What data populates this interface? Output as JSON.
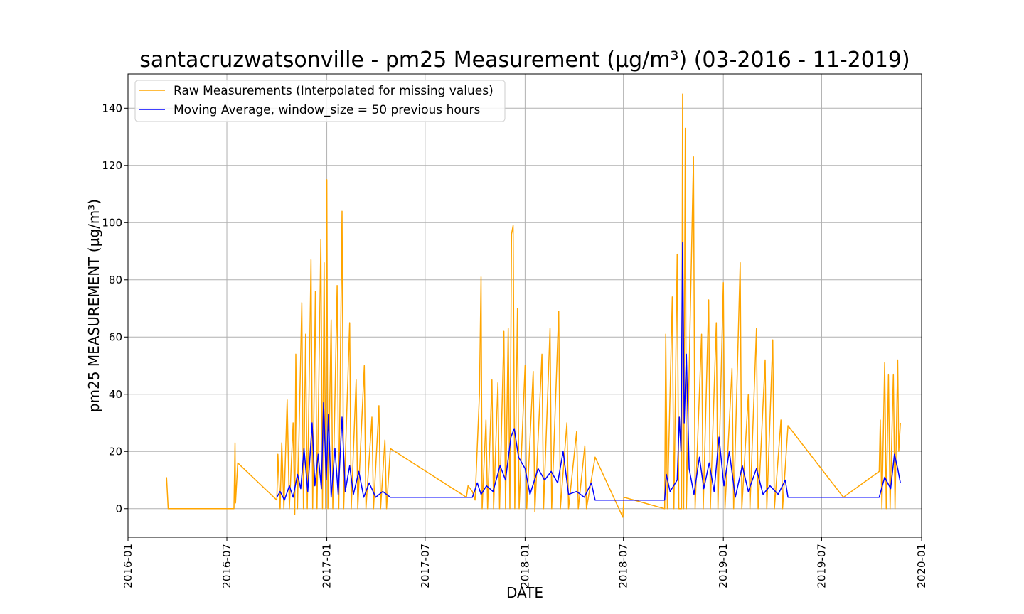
{
  "chart_data": {
    "type": "line",
    "title": "santacruzwatsonville - pm25 Measurement (µg/m³) (03-2016 - 11-2019)",
    "xlabel": "DATE",
    "ylabel": "pm25 MEASUREMENT (µg/m³)",
    "xlim": [
      "2016-01-01",
      "2020-01-01"
    ],
    "ylim": [
      -10,
      152
    ],
    "grid": true,
    "legend_position": "top-left",
    "x_ticks": [
      "2016-01",
      "2016-07",
      "2017-01",
      "2017-07",
      "2018-01",
      "2018-07",
      "2019-01",
      "2019-07",
      "2020-01"
    ],
    "y_ticks": [
      0,
      20,
      40,
      60,
      80,
      100,
      120,
      140
    ],
    "series": [
      {
        "name": "Raw Measurements (Interpolated for missing values)",
        "color": "#ffa500",
        "points": [
          [
            "2016-03-12",
            11
          ],
          [
            "2016-03-15",
            0
          ],
          [
            "2016-07-14",
            0
          ],
          [
            "2016-07-16",
            23
          ],
          [
            "2016-07-17",
            2
          ],
          [
            "2016-07-21",
            16
          ],
          [
            "2016-10-01",
            3
          ],
          [
            "2016-10-03",
            19
          ],
          [
            "2016-10-07",
            0
          ],
          [
            "2016-10-10",
            23
          ],
          [
            "2016-10-14",
            0
          ],
          [
            "2016-10-20",
            38
          ],
          [
            "2016-10-24",
            0
          ],
          [
            "2016-10-31",
            30
          ],
          [
            "2016-11-03",
            -2
          ],
          [
            "2016-11-05",
            54
          ],
          [
            "2016-11-08",
            0
          ],
          [
            "2016-11-16",
            72
          ],
          [
            "2016-11-19",
            0
          ],
          [
            "2016-11-23",
            61
          ],
          [
            "2016-11-26",
            0
          ],
          [
            "2016-12-03",
            87
          ],
          [
            "2016-12-06",
            0
          ],
          [
            "2016-12-11",
            76
          ],
          [
            "2016-12-14",
            0
          ],
          [
            "2016-12-21",
            94
          ],
          [
            "2016-12-24",
            0
          ],
          [
            "2016-12-27",
            86
          ],
          [
            "2016-12-30",
            0
          ],
          [
            "2017-01-01",
            115
          ],
          [
            "2017-01-03",
            0
          ],
          [
            "2017-01-09",
            66
          ],
          [
            "2017-01-12",
            0
          ],
          [
            "2017-01-20",
            78
          ],
          [
            "2017-01-23",
            0
          ],
          [
            "2017-01-29",
            104
          ],
          [
            "2017-02-01",
            0
          ],
          [
            "2017-02-12",
            65
          ],
          [
            "2017-02-15",
            0
          ],
          [
            "2017-02-24",
            45
          ],
          [
            "2017-02-27",
            0
          ],
          [
            "2017-03-11",
            50
          ],
          [
            "2017-03-14",
            0
          ],
          [
            "2017-03-25",
            32
          ],
          [
            "2017-03-28",
            0
          ],
          [
            "2017-04-07",
            36
          ],
          [
            "2017-04-10",
            0
          ],
          [
            "2017-04-18",
            24
          ],
          [
            "2017-04-21",
            0
          ],
          [
            "2017-04-28",
            21
          ],
          [
            "2017-09-15",
            4
          ],
          [
            "2017-09-18",
            8
          ],
          [
            "2017-09-26",
            6
          ],
          [
            "2017-10-01",
            3
          ],
          [
            "2017-10-05",
            22
          ],
          [
            "2017-10-09",
            40
          ],
          [
            "2017-10-12",
            81
          ],
          [
            "2017-10-14",
            0
          ],
          [
            "2017-10-21",
            31
          ],
          [
            "2017-10-24",
            0
          ],
          [
            "2017-11-01",
            45
          ],
          [
            "2017-11-04",
            0
          ],
          [
            "2017-11-12",
            44
          ],
          [
            "2017-11-15",
            0
          ],
          [
            "2017-11-23",
            62
          ],
          [
            "2017-11-26",
            0
          ],
          [
            "2017-12-01",
            63
          ],
          [
            "2017-12-04",
            0
          ],
          [
            "2017-12-07",
            96
          ],
          [
            "2017-12-10",
            99
          ],
          [
            "2017-12-13",
            0
          ],
          [
            "2017-12-18",
            70
          ],
          [
            "2017-12-21",
            0
          ],
          [
            "2018-01-01",
            50
          ],
          [
            "2018-01-04",
            0
          ],
          [
            "2018-01-16",
            48
          ],
          [
            "2018-01-19",
            -1
          ],
          [
            "2018-02-01",
            54
          ],
          [
            "2018-02-04",
            0
          ],
          [
            "2018-02-16",
            63
          ],
          [
            "2018-02-19",
            0
          ],
          [
            "2018-03-04",
            69
          ],
          [
            "2018-03-07",
            0
          ],
          [
            "2018-03-19",
            30
          ],
          [
            "2018-03-22",
            0
          ],
          [
            "2018-04-06",
            27
          ],
          [
            "2018-04-09",
            0
          ],
          [
            "2018-04-21",
            22
          ],
          [
            "2018-04-24",
            0
          ],
          [
            "2018-05-10",
            18
          ],
          [
            "2018-06-30",
            -3
          ],
          [
            "2018-07-02",
            4
          ],
          [
            "2018-09-15",
            0
          ],
          [
            "2018-09-17",
            61
          ],
          [
            "2018-09-20",
            0
          ],
          [
            "2018-09-29",
            74
          ],
          [
            "2018-10-02",
            0
          ],
          [
            "2018-10-08",
            89
          ],
          [
            "2018-10-11",
            0
          ],
          [
            "2018-10-16",
            0
          ],
          [
            "2018-10-18",
            145
          ],
          [
            "2018-10-20",
            0
          ],
          [
            "2018-10-23",
            133
          ],
          [
            "2018-10-25",
            0
          ],
          [
            "2018-11-07",
            123
          ],
          [
            "2018-11-10",
            0
          ],
          [
            "2018-11-22",
            61
          ],
          [
            "2018-11-25",
            0
          ],
          [
            "2018-12-05",
            73
          ],
          [
            "2018-12-08",
            0
          ],
          [
            "2018-12-19",
            65
          ],
          [
            "2018-12-22",
            0
          ],
          [
            "2019-01-01",
            79
          ],
          [
            "2019-01-04",
            0
          ],
          [
            "2019-01-17",
            49
          ],
          [
            "2019-01-20",
            0
          ],
          [
            "2019-02-01",
            86
          ],
          [
            "2019-02-04",
            0
          ],
          [
            "2019-02-16",
            40
          ],
          [
            "2019-02-19",
            0
          ],
          [
            "2019-03-03",
            63
          ],
          [
            "2019-03-06",
            0
          ],
          [
            "2019-03-19",
            52
          ],
          [
            "2019-03-22",
            0
          ],
          [
            "2019-04-02",
            59
          ],
          [
            "2019-04-05",
            0
          ],
          [
            "2019-04-17",
            31
          ],
          [
            "2019-04-20",
            0
          ],
          [
            "2019-04-30",
            29
          ],
          [
            "2019-08-10",
            4
          ],
          [
            "2019-10-15",
            13
          ],
          [
            "2019-10-17",
            31
          ],
          [
            "2019-10-20",
            0
          ],
          [
            "2019-10-25",
            51
          ],
          [
            "2019-10-28",
            0
          ],
          [
            "2019-11-01",
            47
          ],
          [
            "2019-11-04",
            0
          ],
          [
            "2019-11-10",
            47
          ],
          [
            "2019-11-13",
            0
          ],
          [
            "2019-11-18",
            52
          ],
          [
            "2019-11-20",
            20
          ],
          [
            "2019-11-23",
            30
          ]
        ]
      },
      {
        "name": "Moving Average, window_size = 50 previous hours",
        "color": "#0000ff",
        "points": [
          [
            "2016-10-01",
            4
          ],
          [
            "2016-10-07",
            6
          ],
          [
            "2016-10-15",
            3
          ],
          [
            "2016-10-24",
            8
          ],
          [
            "2016-10-31",
            4
          ],
          [
            "2016-11-08",
            12
          ],
          [
            "2016-11-14",
            7
          ],
          [
            "2016-11-20",
            21
          ],
          [
            "2016-11-27",
            6
          ],
          [
            "2016-12-05",
            30
          ],
          [
            "2016-12-10",
            8
          ],
          [
            "2016-12-16",
            19
          ],
          [
            "2016-12-22",
            7
          ],
          [
            "2016-12-26",
            37
          ],
          [
            "2016-12-31",
            10
          ],
          [
            "2017-01-04",
            33
          ],
          [
            "2017-01-09",
            4
          ],
          [
            "2017-01-16",
            21
          ],
          [
            "2017-01-22",
            5
          ],
          [
            "2017-01-29",
            32
          ],
          [
            "2017-02-04",
            6
          ],
          [
            "2017-02-12",
            15
          ],
          [
            "2017-02-19",
            5
          ],
          [
            "2017-03-01",
            13
          ],
          [
            "2017-03-10",
            4
          ],
          [
            "2017-03-20",
            9
          ],
          [
            "2017-04-01",
            4
          ],
          [
            "2017-04-14",
            6
          ],
          [
            "2017-04-28",
            4
          ],
          [
            "2017-09-26",
            4
          ],
          [
            "2017-10-05",
            9
          ],
          [
            "2017-10-12",
            5
          ],
          [
            "2017-10-22",
            8
          ],
          [
            "2017-11-03",
            6
          ],
          [
            "2017-11-16",
            15
          ],
          [
            "2017-11-26",
            10
          ],
          [
            "2017-12-06",
            25
          ],
          [
            "2017-12-12",
            28
          ],
          [
            "2017-12-20",
            18
          ],
          [
            "2018-01-01",
            14
          ],
          [
            "2018-01-10",
            5
          ],
          [
            "2018-01-25",
            14
          ],
          [
            "2018-02-06",
            10
          ],
          [
            "2018-02-18",
            13
          ],
          [
            "2018-03-02",
            9
          ],
          [
            "2018-03-12",
            20
          ],
          [
            "2018-03-22",
            5
          ],
          [
            "2018-04-06",
            6
          ],
          [
            "2018-04-20",
            4
          ],
          [
            "2018-05-03",
            9
          ],
          [
            "2018-05-10",
            3
          ],
          [
            "2018-06-20",
            3
          ],
          [
            "2018-09-15",
            3
          ],
          [
            "2018-09-18",
            12
          ],
          [
            "2018-09-25",
            6
          ],
          [
            "2018-10-08",
            10
          ],
          [
            "2018-10-12",
            32
          ],
          [
            "2018-10-15",
            20
          ],
          [
            "2018-10-18",
            93
          ],
          [
            "2018-10-21",
            30
          ],
          [
            "2018-10-25",
            54
          ],
          [
            "2018-10-30",
            14
          ],
          [
            "2018-11-08",
            5
          ],
          [
            "2018-11-18",
            18
          ],
          [
            "2018-11-26",
            7
          ],
          [
            "2018-12-06",
            16
          ],
          [
            "2018-12-15",
            6
          ],
          [
            "2018-12-24",
            25
          ],
          [
            "2019-01-02",
            8
          ],
          [
            "2019-01-12",
            20
          ],
          [
            "2019-01-23",
            4
          ],
          [
            "2019-02-05",
            15
          ],
          [
            "2019-02-16",
            6
          ],
          [
            "2019-03-03",
            14
          ],
          [
            "2019-03-15",
            5
          ],
          [
            "2019-03-28",
            8
          ],
          [
            "2019-04-12",
            5
          ],
          [
            "2019-04-25",
            10
          ],
          [
            "2019-04-30",
            4
          ],
          [
            "2019-10-15",
            4
          ],
          [
            "2019-10-25",
            11
          ],
          [
            "2019-11-05",
            7
          ],
          [
            "2019-11-12",
            19
          ],
          [
            "2019-11-18",
            14
          ],
          [
            "2019-11-23",
            9
          ]
        ]
      }
    ]
  }
}
